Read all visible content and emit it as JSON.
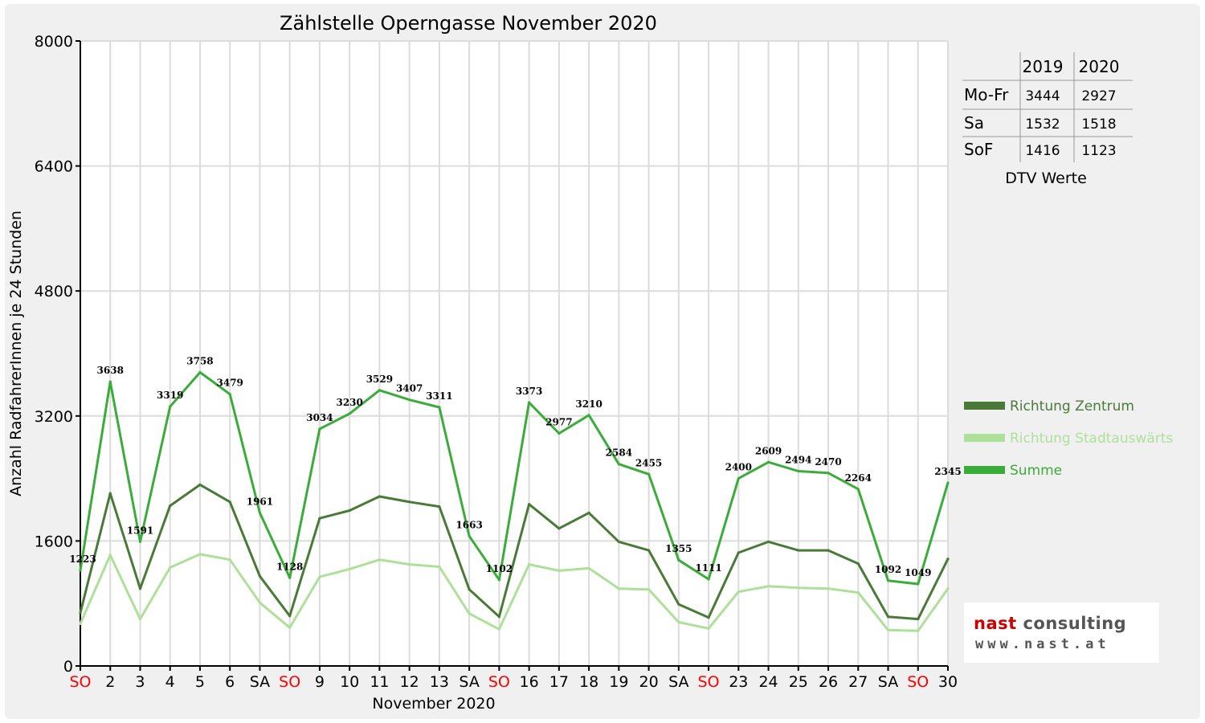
{
  "chart_data": {
    "type": "line",
    "title": "Zählstelle Operngasse November 2020",
    "xlabel": "November 2020",
    "ylabel": "Anzahl RadfahrerInnen je 24 Stunden",
    "ylim": [
      0,
      8000
    ],
    "yticks": [
      0,
      1600,
      3200,
      4800,
      6400,
      8000
    ],
    "grid": true,
    "legend_position": "right",
    "categories": [
      "SO",
      "2",
      "3",
      "4",
      "5",
      "6",
      "SA",
      "SO",
      "9",
      "10",
      "11",
      "12",
      "13",
      "SA",
      "SO",
      "16",
      "17",
      "18",
      "19",
      "20",
      "SA",
      "SO",
      "23",
      "24",
      "25",
      "26",
      "27",
      "SA",
      "SO",
      "30"
    ],
    "category_colors": [
      "#ff0000",
      "#000000",
      "#000000",
      "#000000",
      "#000000",
      "#000000",
      "#000000",
      "#ff0000",
      "#000000",
      "#000000",
      "#000000",
      "#000000",
      "#000000",
      "#000000",
      "#ff0000",
      "#000000",
      "#000000",
      "#000000",
      "#000000",
      "#000000",
      "#000000",
      "#ff0000",
      "#000000",
      "#000000",
      "#000000",
      "#000000",
      "#000000",
      "#000000",
      "#ff0000",
      "#000000"
    ],
    "series": [
      {
        "name": "Richtung Zentrum",
        "color": "#4a7a38",
        "values": [
          680,
          2210,
          990,
          2050,
          2320,
          2100,
          1150,
          640,
          1890,
          1990,
          2170,
          2100,
          2040,
          980,
          630,
          2070,
          1760,
          1960,
          1590,
          1480,
          790,
          620,
          1450,
          1590,
          1480,
          1480,
          1310,
          630,
          600,
          1370
        ]
      },
      {
        "name": "Richtung Stadtauswärts",
        "color": "#aee09a",
        "values": [
          540,
          1420,
          600,
          1260,
          1430,
          1360,
          810,
          490,
          1140,
          1240,
          1360,
          1300,
          1270,
          670,
          470,
          1300,
          1220,
          1250,
          990,
          980,
          560,
          480,
          950,
          1020,
          1000,
          990,
          940,
          460,
          450,
          990
        ]
      },
      {
        "name": "Summe",
        "color": "#3aac3a",
        "values": [
          1223,
          3638,
          1591,
          3319,
          3758,
          3479,
          1961,
          1128,
          3034,
          3230,
          3529,
          3407,
          3311,
          1663,
          1102,
          3373,
          2977,
          3210,
          2584,
          2455,
          1355,
          1111,
          2400,
          2609,
          2494,
          2470,
          2264,
          1092,
          1049,
          2345
        ]
      }
    ],
    "data_labels": [
      "1223",
      "3638",
      "1591",
      "3319",
      "3758",
      "3479",
      "1961",
      "1128",
      "3034",
      "3230",
      "3529",
      "3407",
      "3311",
      "1663",
      "1102",
      "3373",
      "2977",
      "3210",
      "2584",
      "2455",
      "1355",
      "1111",
      "2400",
      "2609",
      "2494",
      "2470",
      "2264",
      "1092",
      "1049",
      "2345"
    ]
  },
  "dtv_table": {
    "headers": [
      "",
      "2019",
      "2020"
    ],
    "rows": [
      {
        "label": "Mo-Fr",
        "v2019": "3444",
        "v2020": "2927"
      },
      {
        "label": "Sa",
        "v2019": "1532",
        "v2020": "1518"
      },
      {
        "label": "SoF",
        "v2019": "1416",
        "v2020": "1123"
      }
    ],
    "caption": "DTV Werte"
  },
  "logo": {
    "line1_part1": "nast",
    "line1_part2": "consulting",
    "line2": "www.nast.at"
  }
}
